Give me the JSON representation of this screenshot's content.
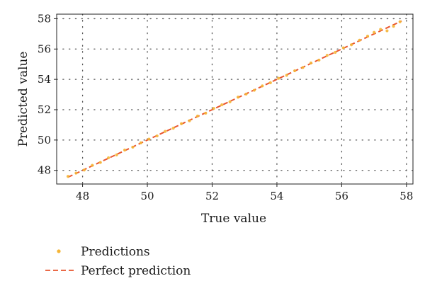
{
  "chart_data": {
    "type": "scatter",
    "title": "",
    "xlabel": "True value",
    "ylabel": "Predicted value",
    "xlim": [
      47.2,
      58.2
    ],
    "ylim": [
      47.1,
      58.3
    ],
    "xticks": [
      48,
      50,
      52,
      54,
      56,
      58
    ],
    "yticks": [
      48,
      50,
      52,
      54,
      56,
      58
    ],
    "grid": true,
    "legend_position": "bottom-left",
    "series": [
      {
        "name": "Predictions",
        "kind": "scatter",
        "color": "#f5b537",
        "x": [
          47.55,
          47.8,
          48.05,
          48.3,
          48.55,
          48.8,
          49.05,
          49.3,
          49.55,
          49.8,
          50.05,
          50.3,
          50.55,
          50.8,
          51.05,
          51.3,
          51.55,
          51.8,
          52.05,
          52.3,
          52.55,
          52.8,
          53.05,
          53.3,
          53.55,
          53.8,
          54.05,
          54.3,
          54.55,
          54.8,
          55.05,
          55.3,
          55.55,
          55.8,
          56.05,
          56.3,
          56.55,
          56.8,
          57.0,
          57.2,
          57.4,
          57.6,
          57.8
        ],
        "y": [
          47.6,
          47.82,
          48.02,
          48.33,
          48.52,
          48.83,
          49.02,
          49.34,
          49.53,
          49.82,
          50.06,
          50.27,
          50.57,
          50.78,
          51.08,
          51.27,
          51.58,
          51.77,
          52.08,
          52.32,
          52.52,
          52.83,
          53.03,
          53.28,
          53.57,
          53.78,
          54.07,
          54.27,
          54.57,
          54.78,
          55.08,
          55.27,
          55.58,
          55.78,
          56.08,
          56.28,
          56.58,
          56.85,
          57.1,
          57.3,
          57.2,
          57.5,
          57.8
        ]
      },
      {
        "name": "Perfect prediction",
        "kind": "line",
        "style": "dashed",
        "color": "#e8552e",
        "x": [
          47.55,
          57.85
        ],
        "y": [
          47.55,
          57.85
        ]
      }
    ],
    "legend": [
      {
        "label": "Predictions",
        "marker": "dot"
      },
      {
        "label": "Perfect prediction",
        "marker": "dashed-line"
      }
    ]
  }
}
